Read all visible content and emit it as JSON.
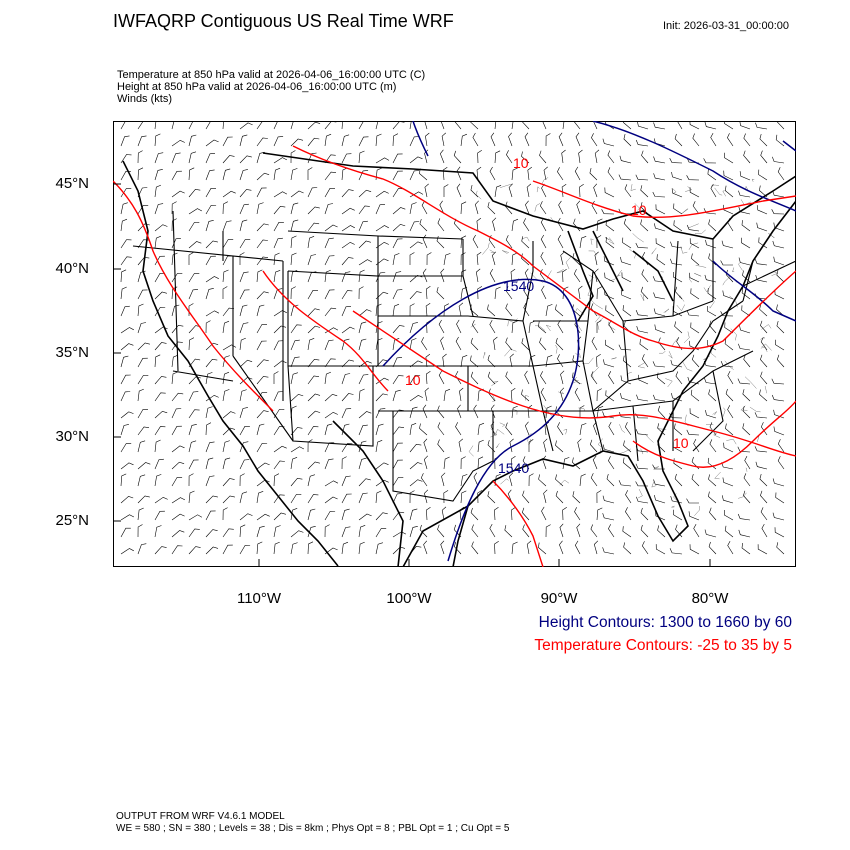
{
  "title": "IWFAQRP Contiguous US Real Time WRF",
  "init_time": "Init: 2026-03-31_00:00:00",
  "subtitles": [
    "Temperature at 850 hPa valid at 2026-04-06_16:00:00 UTC   (C)",
    "Height at 850 hPa valid at 2026-04-06_16:00:00 UTC   (m)",
    "Winds   (kts)"
  ],
  "lat_labels": [
    "45°N",
    "40°N",
    "35°N",
    "30°N",
    "25°N"
  ],
  "lon_labels": [
    "110°W",
    "100°W",
    "90°W",
    "80°W"
  ],
  "contour_labels": {
    "height": [
      "1540",
      "1540"
    ],
    "temperature": [
      "10",
      "10",
      "10",
      "10"
    ]
  },
  "legend": {
    "height": "Height Contours: 1300 to 1660 by 60",
    "temperature": "Temperature Contours: -25 to 35 by 5"
  },
  "colors": {
    "height": "#000080",
    "temperature": "#ff0000",
    "borders": "#000000"
  },
  "footer": [
    "OUTPUT FROM WRF V4.6.1 MODEL",
    "WE = 580 ; SN = 380 ; Levels = 38 ; Dis = 8km ; Phys Opt = 8 ; PBL Opt = 1 ; Cu Opt = 5"
  ]
}
